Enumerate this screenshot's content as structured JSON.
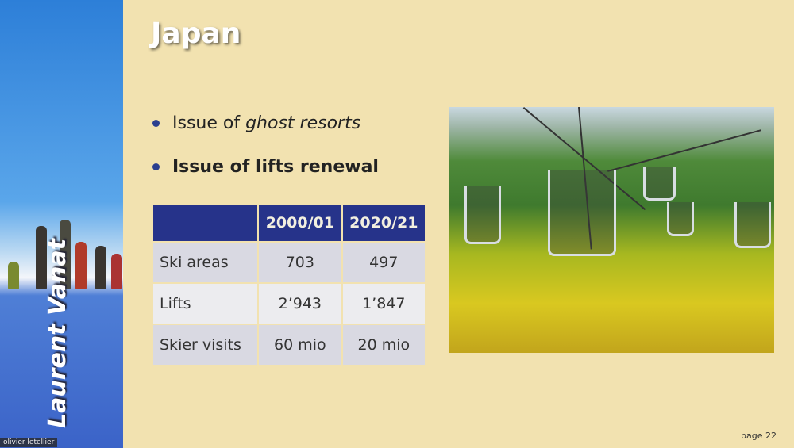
{
  "sidebar": {
    "author": "Laurent Vanat"
  },
  "participant": {
    "name": "olivier letellier"
  },
  "slide": {
    "title": "Japan",
    "bullets": [
      {
        "prefix": "Issue of ",
        "emphasis": "ghost resorts"
      },
      {
        "text": "Issue of lifts renewal"
      }
    ],
    "table": {
      "headers": [
        "",
        "2000/01",
        "2020/21"
      ],
      "rows": [
        [
          "Ski areas",
          "703",
          "497"
        ],
        [
          "Lifts",
          "2’943",
          "1’847"
        ],
        [
          "Skier visits",
          "60 mio",
          "20 mio"
        ]
      ]
    },
    "page_label": "page 22"
  },
  "colors": {
    "background": "#f2e2b0",
    "table_header": "#26338a",
    "bullet": "#2b3f8f"
  }
}
